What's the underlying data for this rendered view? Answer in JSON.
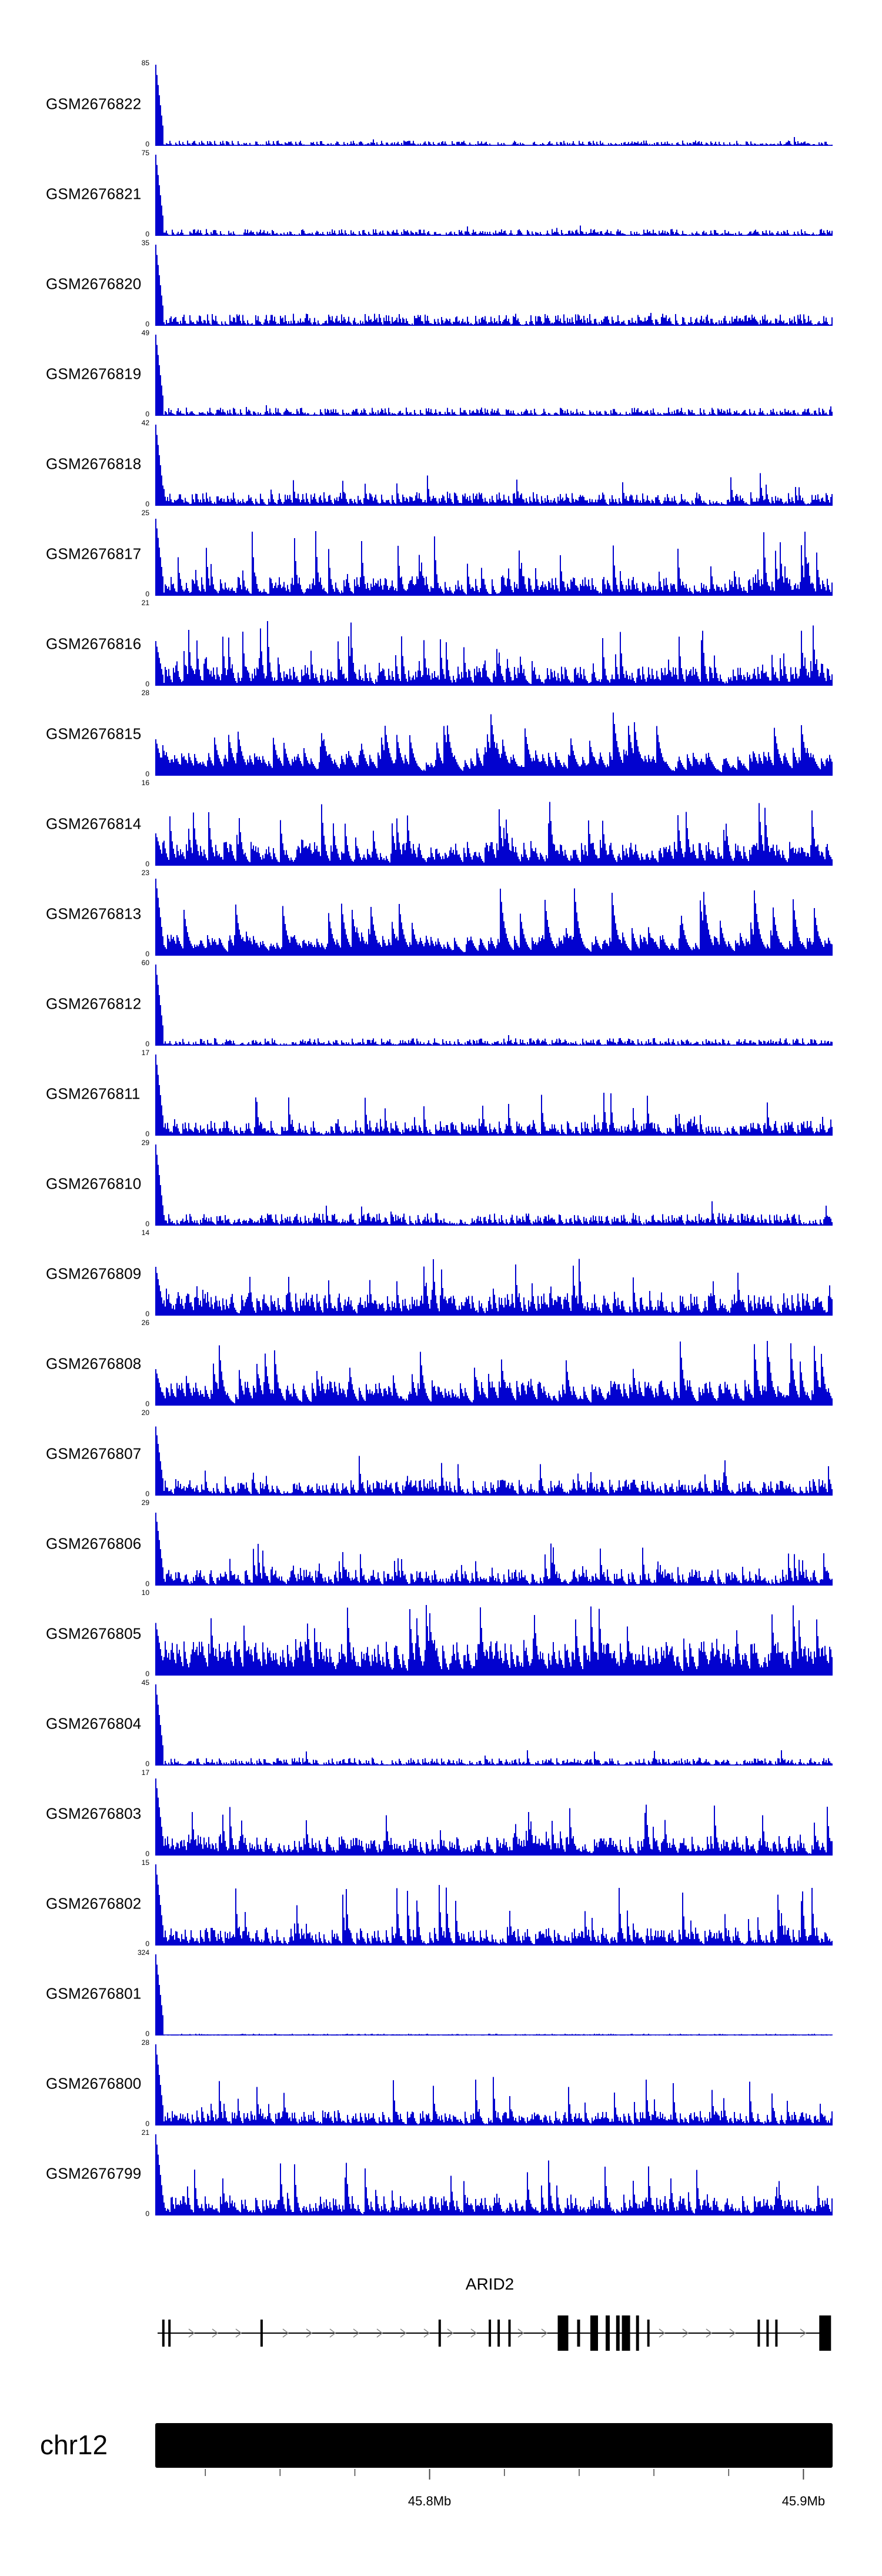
{
  "colors": {
    "coverage_blue": "#0202CF",
    "gene_black": "#000000",
    "chevron_gray": "#8a8a8a",
    "tick_gray": "#444444",
    "ideogram_black": "#000000"
  },
  "chart_data": {
    "type": "area",
    "description_visible": false,
    "y_axis": {
      "min_label": "0"
    },
    "x_axis": {
      "chromosome": "chr12",
      "start_mb": 45.7266,
      "end_mb": 45.9078,
      "minor_ticks_mb": [
        45.74,
        45.76,
        45.78,
        45.82,
        45.84,
        45.86,
        45.88
      ],
      "labeled_ticks": [
        {
          "mb": 45.8,
          "label": "45.8Mb"
        },
        {
          "mb": 45.9,
          "label": "45.9Mb"
        }
      ]
    },
    "tracks": [
      {
        "label": "GSM2676822",
        "ymax": 85,
        "profile": {
          "spike": 1,
          "base": 0.035,
          "peak_prob": 0.02,
          "peak": 0.14,
          "decay": 0.45
        }
      },
      {
        "label": "GSM2676821",
        "ymax": 75,
        "profile": {
          "spike": 1,
          "base": 0.045,
          "peak_prob": 0.02,
          "peak": 0.13,
          "decay": 0.45
        }
      },
      {
        "label": "GSM2676820",
        "ymax": 35,
        "profile": {
          "spike": 1,
          "base": 0.08,
          "peak_prob": 0.03,
          "peak": 0.18,
          "decay": 0.45
        }
      },
      {
        "label": "GSM2676819",
        "ymax": 49,
        "profile": {
          "spike": 1,
          "base": 0.055,
          "peak_prob": 0.025,
          "peak": 0.15,
          "decay": 0.45
        }
      },
      {
        "label": "GSM2676818",
        "ymax": 42,
        "profile": {
          "spike": 1,
          "base": 0.09,
          "peak_prob": 0.05,
          "peak": 0.42,
          "decay": 0.55
        }
      },
      {
        "label": "GSM2676817",
        "ymax": 25,
        "profile": {
          "spike": 0.95,
          "base": 0.13,
          "peak_prob": 0.09,
          "peak": 0.8,
          "decay": 0.6
        }
      },
      {
        "label": "GSM2676816",
        "ymax": 21,
        "profile": {
          "spike": 0.55,
          "base": 0.13,
          "peak_prob": 0.1,
          "peak": 0.8,
          "decay": 0.6
        }
      },
      {
        "label": "GSM2676815",
        "ymax": 28,
        "profile": {
          "spike": 0.45,
          "base": 0.16,
          "peak_prob": 0.09,
          "peak": 0.8,
          "decay": 0.82
        }
      },
      {
        "label": "GSM2676814",
        "ymax": 16,
        "profile": {
          "spike": 0.4,
          "base": 0.16,
          "peak_prob": 0.11,
          "peak": 0.8,
          "decay": 0.7
        }
      },
      {
        "label": "GSM2676813",
        "ymax": 23,
        "profile": {
          "spike": 0.95,
          "base": 0.14,
          "peak_prob": 0.1,
          "peak": 0.85,
          "decay": 0.8
        }
      },
      {
        "label": "GSM2676812",
        "ymax": 60,
        "profile": {
          "spike": 1,
          "base": 0.05,
          "peak_prob": 0.02,
          "peak": 0.16,
          "decay": 0.45
        }
      },
      {
        "label": "GSM2676811",
        "ymax": 17,
        "profile": {
          "spike": 1,
          "base": 0.1,
          "peak_prob": 0.08,
          "peak": 0.55,
          "decay": 0.55
        }
      },
      {
        "label": "GSM2676810",
        "ymax": 29,
        "profile": {
          "spike": 1,
          "base": 0.085,
          "peak_prob": 0.04,
          "peak": 0.3,
          "decay": 0.5
        }
      },
      {
        "label": "GSM2676809",
        "ymax": 14,
        "profile": {
          "spike": 0.6,
          "base": 0.15,
          "peak_prob": 0.1,
          "peak": 0.7,
          "decay": 0.6
        }
      },
      {
        "label": "GSM2676808",
        "ymax": 26,
        "profile": {
          "spike": 0.45,
          "base": 0.17,
          "peak_prob": 0.1,
          "peak": 0.8,
          "decay": 0.75
        }
      },
      {
        "label": "GSM2676807",
        "ymax": 20,
        "profile": {
          "spike": 0.85,
          "base": 0.11,
          "peak_prob": 0.08,
          "peak": 0.5,
          "decay": 0.55
        }
      },
      {
        "label": "GSM2676806",
        "ymax": 29,
        "profile": {
          "spike": 0.9,
          "base": 0.11,
          "peak_prob": 0.08,
          "peak": 0.55,
          "decay": 0.55
        }
      },
      {
        "label": "GSM2676805",
        "ymax": 10,
        "profile": {
          "spike": 0.65,
          "base": 0.23,
          "peak_prob": 0.13,
          "peak": 0.9,
          "decay": 0.7
        }
      },
      {
        "label": "GSM2676804",
        "ymax": 45,
        "profile": {
          "spike": 1,
          "base": 0.05,
          "peak_prob": 0.03,
          "peak": 0.2,
          "decay": 0.45
        }
      },
      {
        "label": "GSM2676803",
        "ymax": 17,
        "profile": {
          "spike": 0.95,
          "base": 0.13,
          "peak_prob": 0.09,
          "peak": 0.7,
          "decay": 0.6
        }
      },
      {
        "label": "GSM2676802",
        "ymax": 15,
        "profile": {
          "spike": 1,
          "base": 0.12,
          "peak_prob": 0.09,
          "peak": 0.75,
          "decay": 0.55
        }
      },
      {
        "label": "GSM2676801",
        "ymax": 324,
        "profile": {
          "spike": 1,
          "base": 0.012,
          "peak_prob": 0.004,
          "peak": 0.05,
          "decay": 0.35
        }
      },
      {
        "label": "GSM2676800",
        "ymax": 28,
        "profile": {
          "spike": 1,
          "base": 0.1,
          "peak_prob": 0.08,
          "peak": 0.6,
          "decay": 0.55
        }
      },
      {
        "label": "GSM2676799",
        "ymax": 21,
        "profile": {
          "spike": 1,
          "base": 0.13,
          "peak_prob": 0.09,
          "peak": 0.7,
          "decay": 0.6
        }
      }
    ],
    "gene_track": {
      "gene": "ARID2",
      "strand": "right",
      "exons": [
        {
          "f": 0.012,
          "w": 4,
          "thick": false
        },
        {
          "f": 0.021,
          "w": 4,
          "thick": false
        },
        {
          "f": 0.157,
          "w": 4,
          "thick": false
        },
        {
          "f": 0.42,
          "w": 4,
          "thick": false
        },
        {
          "f": 0.494,
          "w": 4,
          "thick": false
        },
        {
          "f": 0.507,
          "w": 4,
          "thick": false
        },
        {
          "f": 0.523,
          "w": 4,
          "thick": false
        },
        {
          "f": 0.602,
          "w": 18,
          "thick": true
        },
        {
          "f": 0.625,
          "w": 5,
          "thick": false
        },
        {
          "f": 0.648,
          "w": 13,
          "thick": true
        },
        {
          "f": 0.668,
          "w": 7,
          "thick": true
        },
        {
          "f": 0.683,
          "w": 6,
          "thick": true
        },
        {
          "f": 0.695,
          "w": 14,
          "thick": true
        },
        {
          "f": 0.712,
          "w": 5,
          "thick": true
        },
        {
          "f": 0.728,
          "w": 4,
          "thick": false
        },
        {
          "f": 0.891,
          "w": 4,
          "thick": false
        },
        {
          "f": 0.904,
          "w": 4,
          "thick": false
        },
        {
          "f": 0.917,
          "w": 4,
          "thick": false
        },
        {
          "f": 0.989,
          "w": 20,
          "thick": true
        }
      ]
    },
    "ideogram": {
      "label": "chr12"
    }
  }
}
